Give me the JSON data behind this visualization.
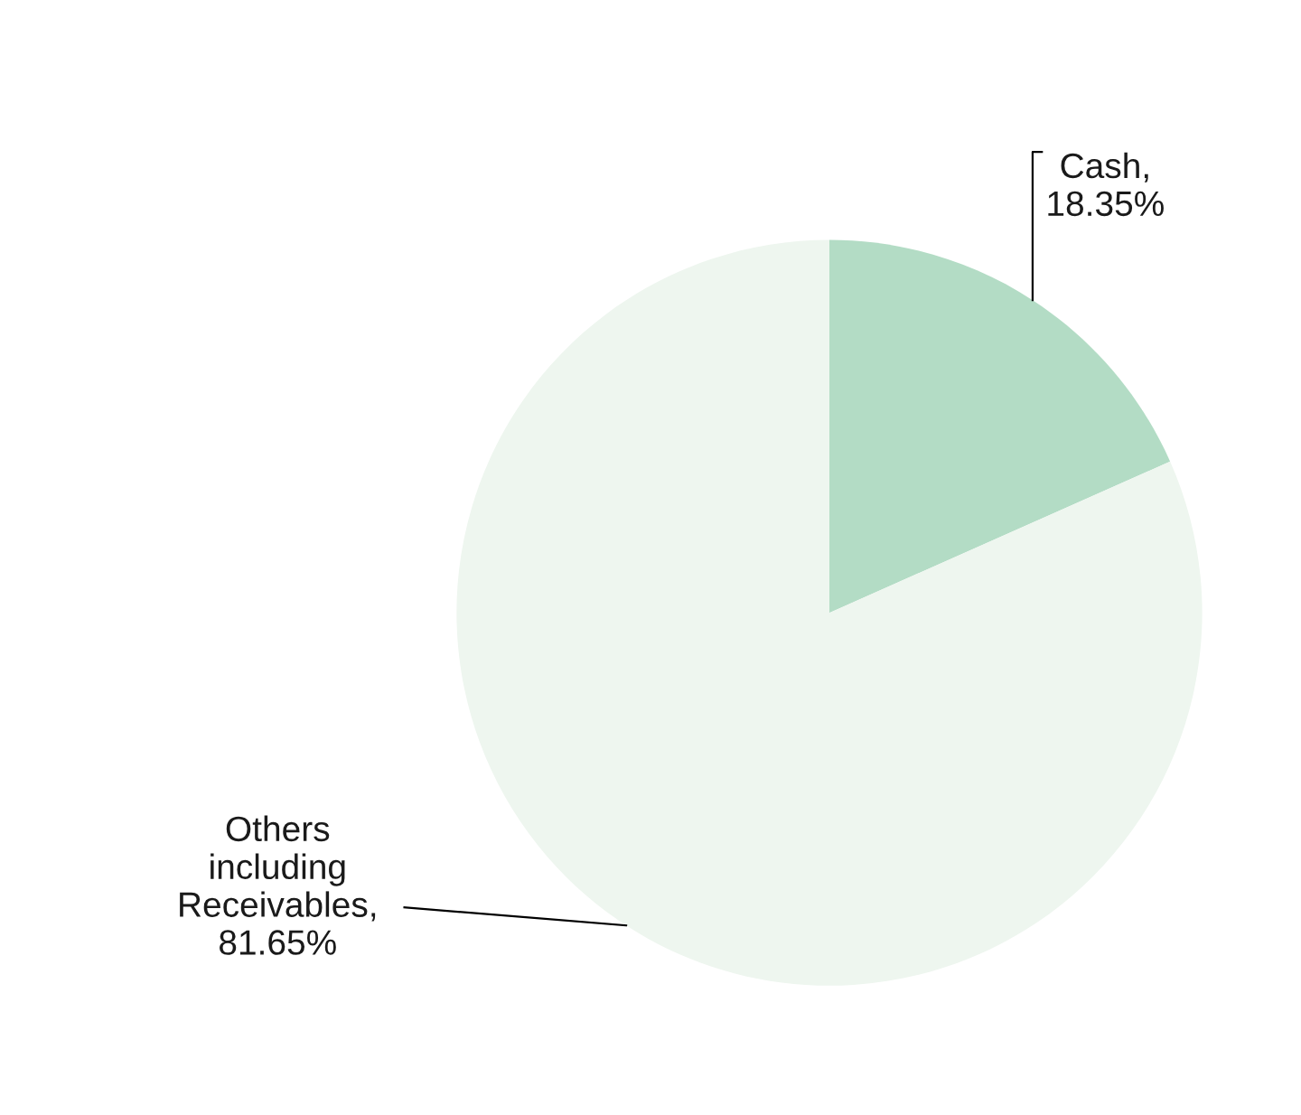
{
  "chart_data": {
    "type": "pie",
    "categories": [
      "Cash",
      "Others\nincluding\nReceivables"
    ],
    "values": [
      18.35,
      81.65
    ],
    "value_labels": [
      ",\n18.35%",
      ",\n81.65%"
    ],
    "colors": [
      "#b3dcc5",
      "#eef6ef"
    ],
    "legend": false
  }
}
